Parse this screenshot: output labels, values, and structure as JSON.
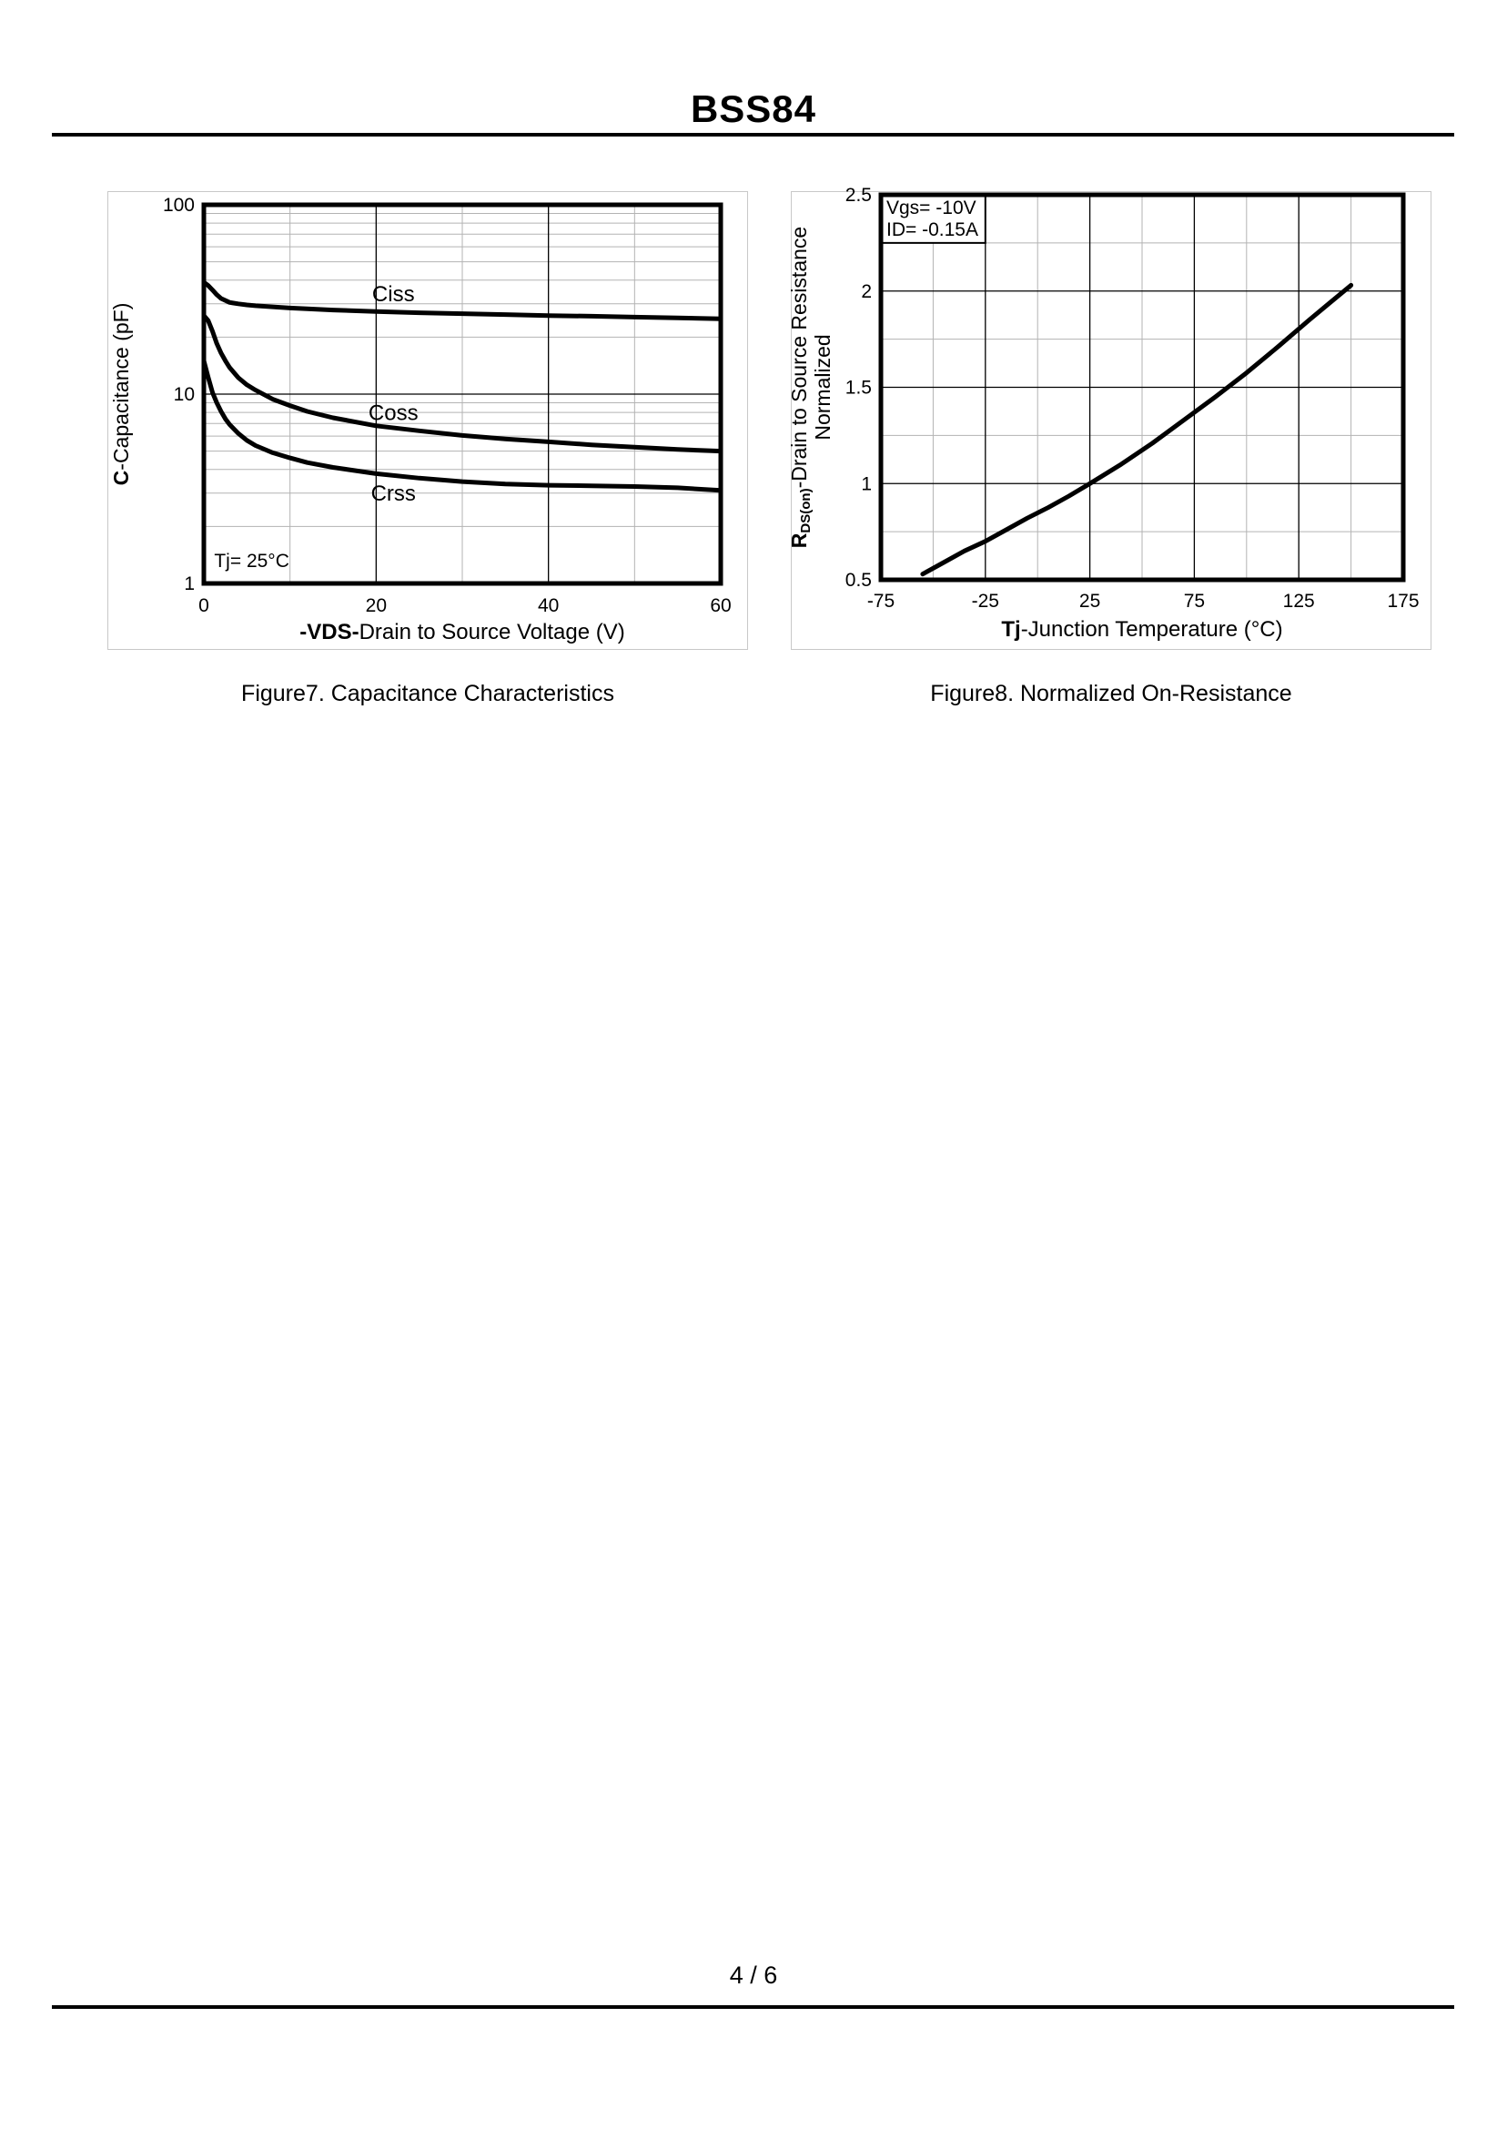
{
  "page": {
    "title": "BSS84",
    "footer": "4 / 6"
  },
  "figures": [
    {
      "caption": "Figure7. Capacitance Characteristics"
    },
    {
      "caption": "Figure8. Normalized On-Resistance"
    }
  ],
  "chart_data": [
    {
      "type": "line",
      "title": "Figure7. Capacitance Characteristics",
      "xlabel": "-VDS-Drain to Source Voltage (V)",
      "ylabel": "C-Capacitance (pF)",
      "xlabel_parts": [
        {
          "text": "-VDS-",
          "bold": true
        },
        {
          "text": "Drain to Source Voltage (V)",
          "bold": false
        }
      ],
      "ylabel_lines": [
        [
          {
            "text": "C",
            "bold": true
          },
          {
            "text": "-Capacitance (pF)",
            "bold": false
          }
        ]
      ],
      "x_axis": {
        "scale": "linear",
        "min": 0,
        "max": 60,
        "tick_values": [
          0,
          20,
          40,
          60
        ],
        "tick_labels": [
          "0",
          "20",
          "40",
          "60"
        ],
        "major_grid": [
          20,
          40
        ],
        "minor_grid": [
          10,
          30,
          50
        ]
      },
      "y_axis": {
        "scale": "log",
        "min": 1,
        "max": 100,
        "tick_values": [
          1,
          10,
          100
        ],
        "tick_labels": [
          "1",
          "10",
          "100"
        ],
        "major_grid": [
          10
        ],
        "minor_grid": [
          2,
          3,
          4,
          5,
          6,
          7,
          8,
          9,
          20,
          30,
          40,
          50,
          60,
          70,
          80,
          90
        ]
      },
      "series": [
        {
          "name": "Ciss",
          "label_at": {
            "x": 22,
            "y": 31
          },
          "x": [
            0,
            0.5,
            1,
            1.5,
            2,
            3,
            4,
            5,
            6,
            8,
            10,
            12,
            15,
            20,
            25,
            30,
            35,
            40,
            45,
            50,
            55,
            60
          ],
          "y": [
            39,
            37.5,
            35.5,
            33.5,
            32,
            30.5,
            30,
            29.6,
            29.3,
            28.9,
            28.5,
            28.2,
            27.8,
            27.3,
            26.9,
            26.6,
            26.3,
            26.0,
            25.8,
            25.5,
            25.3,
            25.0
          ]
        },
        {
          "name": "Coss",
          "label_at": {
            "x": 22,
            "y": 7.3
          },
          "x": [
            0,
            0.5,
            1,
            1.5,
            2,
            2.5,
            3,
            4,
            5,
            6,
            8,
            10,
            12,
            15,
            20,
            25,
            30,
            35,
            40,
            45,
            50,
            55,
            60
          ],
          "y": [
            26,
            24.5,
            21.5,
            18.5,
            16.5,
            15,
            13.8,
            12.2,
            11.2,
            10.5,
            9.4,
            8.7,
            8.1,
            7.5,
            6.8,
            6.4,
            6.05,
            5.8,
            5.6,
            5.4,
            5.25,
            5.1,
            5.0
          ]
        },
        {
          "name": "Crss",
          "label_at": {
            "x": 22,
            "y": 2.74
          },
          "x": [
            0,
            0.5,
            1,
            1.5,
            2,
            2.5,
            3,
            4,
            5,
            6,
            8,
            10,
            12,
            15,
            20,
            25,
            30,
            35,
            40,
            45,
            50,
            55,
            60
          ],
          "y": [
            15,
            12.3,
            10.2,
            9.0,
            8.1,
            7.4,
            6.9,
            6.2,
            5.7,
            5.35,
            4.9,
            4.6,
            4.35,
            4.1,
            3.8,
            3.6,
            3.45,
            3.35,
            3.3,
            3.28,
            3.25,
            3.2,
            3.1
          ]
        }
      ],
      "annotations": [
        {
          "text": "Tj= 25°C",
          "x": 1.2,
          "y": 1.22
        }
      ]
    },
    {
      "type": "line",
      "title": "Figure8. Normalized On-Resistance",
      "xlabel": "Tj-Junction Temperature (°C)",
      "ylabel": "RDS(on)-Drain to Source Resistance Normalized",
      "xlabel_parts": [
        {
          "text": "Tj",
          "bold": true
        },
        {
          "text": "-Junction Temperature (°C)",
          "bold": false
        }
      ],
      "ylabel_lines": [
        [
          {
            "text": "R",
            "bold": true
          },
          {
            "text": "DS(on)",
            "bold": true,
            "sub": true
          },
          {
            "text": "-Drain to Source Resistance",
            "bold": false
          }
        ],
        [
          {
            "text": "Normalized",
            "bold": false
          }
        ]
      ],
      "x_axis": {
        "scale": "linear",
        "min": -75,
        "max": 175,
        "tick_values": [
          -75,
          -25,
          25,
          75,
          125,
          175
        ],
        "tick_labels": [
          "-75",
          "-25",
          "25",
          "75",
          "125",
          "175"
        ],
        "major_grid": [
          -25,
          25,
          75,
          125
        ],
        "minor_grid": [
          -50,
          0,
          50,
          100,
          150
        ]
      },
      "y_axis": {
        "scale": "linear",
        "min": 0.5,
        "max": 2.5,
        "tick_values": [
          0.5,
          1,
          1.5,
          2,
          2.5
        ],
        "tick_labels": [
          "0.5",
          "1",
          "1.5",
          "2",
          "2.5"
        ],
        "major_grid": [
          1,
          1.5,
          2
        ],
        "minor_grid": [
          0.75,
          1.25,
          1.75,
          2.25
        ]
      },
      "series": [
        {
          "name": "RDS(on) Normalized",
          "x": [
            -55,
            -45,
            -35,
            -25,
            -15,
            -5,
            5,
            15,
            25,
            40,
            55,
            70,
            85,
            100,
            115,
            130,
            140,
            150
          ],
          "y": [
            0.53,
            0.59,
            0.65,
            0.7,
            0.76,
            0.82,
            0.875,
            0.935,
            1.0,
            1.1,
            1.21,
            1.33,
            1.45,
            1.575,
            1.71,
            1.85,
            1.94,
            2.03
          ]
        }
      ],
      "legend_box": {
        "lines": [
          "Vgs= -10V",
          "ID= -0.15A"
        ],
        "x_to": -25,
        "y_to": 2.25
      },
      "annotations": []
    }
  ]
}
